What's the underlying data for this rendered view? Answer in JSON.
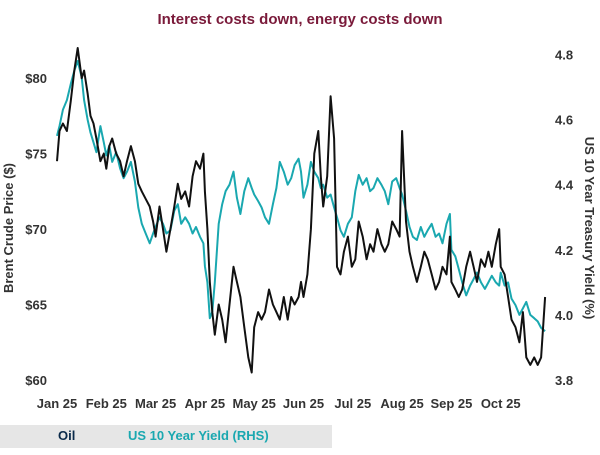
{
  "chart_data": {
    "type": "line",
    "title": "Interest costs down, energy costs down",
    "xlabel": "",
    "ylabel": "Brent Crude Price ($)",
    "y2label": "US 10 Year Treasury Yield (%)",
    "categories": [
      "Jan 25",
      "Feb 25",
      "Mar 25",
      "Apr 25",
      "May 25",
      "Jun 25",
      "Jul 25",
      "Aug 25",
      "Sep 25",
      "Oct 25"
    ],
    "ylim": [
      60,
      82
    ],
    "y2lim": [
      3.8,
      4.82
    ],
    "yticks": [
      "$60",
      "$65",
      "$70",
      "$75",
      "$80"
    ],
    "y2ticks": [
      "3.8",
      "4.0",
      "4.2",
      "4.4",
      "4.6",
      "4.8"
    ],
    "series": [
      {
        "name": "Oil",
        "axis": "left",
        "color": "#111111",
        "x": [
          0.0,
          0.05,
          0.12,
          0.2,
          0.28,
          0.35,
          0.42,
          0.5,
          0.55,
          0.62,
          0.68,
          0.74,
          0.8,
          0.88,
          0.95,
          1.0,
          1.06,
          1.12,
          1.2,
          1.28,
          1.35,
          1.42,
          1.5,
          1.58,
          1.65,
          1.72,
          1.8,
          1.88,
          1.95,
          2.0,
          2.08,
          2.15,
          2.22,
          2.3,
          2.38,
          2.45,
          2.52,
          2.6,
          2.68,
          2.75,
          2.82,
          2.9,
          2.97,
          3.0,
          3.05,
          3.1,
          3.15,
          3.2,
          3.28,
          3.35,
          3.42,
          3.5,
          3.58,
          3.65,
          3.72,
          3.8,
          3.88,
          3.95,
          4.0,
          4.08,
          4.15,
          4.22,
          4.3,
          4.38,
          4.45,
          4.52,
          4.6,
          4.68,
          4.75,
          4.82,
          4.9,
          4.95,
          5.0,
          5.08,
          5.15,
          5.22,
          5.3,
          5.35,
          5.4,
          5.48,
          5.55,
          5.62,
          5.68,
          5.75,
          5.82,
          5.9,
          5.98,
          6.05,
          6.12,
          6.2,
          6.28,
          6.35,
          6.42,
          6.5,
          6.58,
          6.65,
          6.72,
          6.8,
          6.88,
          6.95,
          7.0,
          7.08,
          7.15,
          7.22,
          7.3,
          7.38,
          7.45,
          7.52,
          7.6,
          7.68,
          7.75,
          7.82,
          7.9,
          7.97,
          8.0,
          8.08,
          8.15,
          8.22,
          8.3,
          8.38,
          8.45,
          8.52,
          8.6,
          8.68,
          8.75,
          8.82,
          8.9,
          8.97,
          9.0,
          9.08,
          9.15,
          9.22,
          9.3,
          9.38,
          9.45,
          9.52,
          9.6,
          9.68,
          9.75,
          9.82,
          9.9
        ],
        "values": [
          74.5,
          76.5,
          77.0,
          76.5,
          78.5,
          80.5,
          82.0,
          80.0,
          80.5,
          79.0,
          77.5,
          77.0,
          76.0,
          74.5,
          75.0,
          74.0,
          75.5,
          76.0,
          75.0,
          74.5,
          73.5,
          74.5,
          75.5,
          74.5,
          73.0,
          72.5,
          72.0,
          71.5,
          70.5,
          69.5,
          71.5,
          70.0,
          68.5,
          70.0,
          71.5,
          73.0,
          72.0,
          72.5,
          71.5,
          73.5,
          74.5,
          74.0,
          75.0,
          72.5,
          70.0,
          66.5,
          64.5,
          63.0,
          65.0,
          64.0,
          62.5,
          65.0,
          67.5,
          66.5,
          65.5,
          63.5,
          61.5,
          60.5,
          63.5,
          64.5,
          64.0,
          64.5,
          66.0,
          65.0,
          64.5,
          64.0,
          65.5,
          64.0,
          65.5,
          65.0,
          65.5,
          66.5,
          65.5,
          67.0,
          70.0,
          75.0,
          76.5,
          73.5,
          71.5,
          73.5,
          78.8,
          76.0,
          67.5,
          67.0,
          68.5,
          69.5,
          67.5,
          68.0,
          70.5,
          69.5,
          68.0,
          69.0,
          68.5,
          70.0,
          69.0,
          68.5,
          69.0,
          70.5,
          70.0,
          69.5,
          76.5,
          70.5,
          68.5,
          67.5,
          66.5,
          67.5,
          68.5,
          68.0,
          67.0,
          66.0,
          66.5,
          67.5,
          67.0,
          69.5,
          66.5,
          66.0,
          65.5,
          66.0,
          67.5,
          68.5,
          67.5,
          66.5,
          68.0,
          67.5,
          68.5,
          67.5,
          69.0,
          70.0,
          67.5,
          67.0,
          65.5,
          64.0,
          63.5,
          62.5,
          64.5,
          61.5,
          61.0,
          61.5,
          61.0,
          61.5,
          65.5
        ]
      },
      {
        "name": "US 10 Year Yield (RHS)",
        "axis": "right",
        "color": "#1aa8b0",
        "x": [
          0.0,
          0.05,
          0.12,
          0.2,
          0.28,
          0.35,
          0.42,
          0.5,
          0.55,
          0.62,
          0.68,
          0.74,
          0.8,
          0.88,
          0.95,
          1.0,
          1.06,
          1.12,
          1.2,
          1.28,
          1.35,
          1.42,
          1.5,
          1.58,
          1.65,
          1.72,
          1.8,
          1.88,
          1.95,
          2.0,
          2.08,
          2.15,
          2.22,
          2.3,
          2.38,
          2.45,
          2.52,
          2.6,
          2.68,
          2.75,
          2.82,
          2.9,
          2.97,
          3.0,
          3.05,
          3.1,
          3.15,
          3.2,
          3.28,
          3.35,
          3.42,
          3.5,
          3.58,
          3.65,
          3.72,
          3.8,
          3.88,
          3.95,
          4.0,
          4.08,
          4.15,
          4.22,
          4.3,
          4.38,
          4.45,
          4.52,
          4.6,
          4.68,
          4.75,
          4.82,
          4.9,
          4.95,
          5.0,
          5.08,
          5.15,
          5.22,
          5.3,
          5.35,
          5.4,
          5.48,
          5.55,
          5.62,
          5.68,
          5.75,
          5.82,
          5.9,
          5.98,
          6.05,
          6.12,
          6.2,
          6.28,
          6.35,
          6.42,
          6.5,
          6.58,
          6.65,
          6.72,
          6.8,
          6.88,
          6.95,
          7.0,
          7.08,
          7.15,
          7.22,
          7.3,
          7.38,
          7.45,
          7.52,
          7.6,
          7.68,
          7.75,
          7.82,
          7.9,
          7.97,
          8.0,
          8.08,
          8.15,
          8.22,
          8.3,
          8.38,
          8.45,
          8.52,
          8.6,
          8.68,
          8.75,
          8.82,
          8.9,
          8.97,
          9.0,
          9.08,
          9.15,
          9.22,
          9.3,
          9.38,
          9.45,
          9.52,
          9.6,
          9.68,
          9.75,
          9.82,
          9.9
        ],
        "values": [
          4.55,
          4.58,
          4.63,
          4.66,
          4.71,
          4.75,
          4.78,
          4.73,
          4.66,
          4.6,
          4.56,
          4.53,
          4.5,
          4.58,
          4.53,
          4.49,
          4.52,
          4.47,
          4.5,
          4.45,
          4.42,
          4.44,
          4.47,
          4.41,
          4.33,
          4.28,
          4.25,
          4.22,
          4.25,
          4.27,
          4.3,
          4.28,
          4.25,
          4.26,
          4.32,
          4.34,
          4.28,
          4.3,
          4.28,
          4.25,
          4.27,
          4.24,
          4.22,
          4.15,
          4.1,
          3.99,
          4.01,
          4.1,
          4.28,
          4.34,
          4.38,
          4.4,
          4.44,
          4.36,
          4.31,
          4.38,
          4.42,
          4.39,
          4.37,
          4.35,
          4.33,
          4.3,
          4.28,
          4.34,
          4.39,
          4.47,
          4.44,
          4.4,
          4.42,
          4.46,
          4.48,
          4.44,
          4.36,
          4.4,
          4.47,
          4.44,
          4.42,
          4.39,
          4.4,
          4.36,
          4.37,
          4.33,
          4.3,
          4.26,
          4.24,
          4.28,
          4.3,
          4.38,
          4.43,
          4.4,
          4.42,
          4.38,
          4.39,
          4.42,
          4.4,
          4.38,
          4.34,
          4.41,
          4.42,
          4.39,
          4.37,
          4.32,
          4.27,
          4.24,
          4.23,
          4.27,
          4.24,
          4.26,
          4.28,
          4.24,
          4.25,
          4.22,
          4.28,
          4.31,
          4.2,
          4.18,
          4.14,
          4.1,
          4.06,
          4.09,
          4.11,
          4.13,
          4.1,
          4.08,
          4.1,
          4.12,
          4.1,
          4.09,
          4.13,
          4.09,
          4.1,
          4.05,
          4.03,
          4.0,
          4.02,
          4.04,
          4.0,
          3.99,
          3.98,
          3.96,
          3.95
        ]
      }
    ],
    "legend": {
      "placement": "bottom-left"
    }
  }
}
